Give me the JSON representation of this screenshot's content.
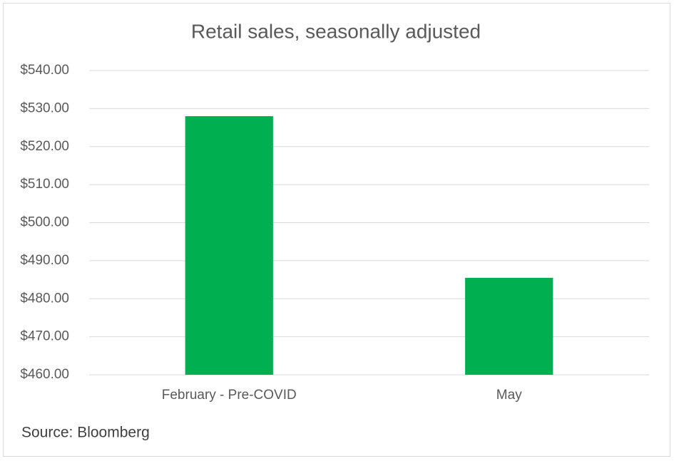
{
  "chart_data": {
    "type": "bar",
    "title": "Retail sales, seasonally adjusted",
    "categories": [
      "February - Pre-COVID",
      "May"
    ],
    "values": [
      528.0,
      485.5
    ],
    "color": "#00b050",
    "ylim": [
      460,
      540
    ],
    "yticks": [
      {
        "value": 460,
        "label": "$460.00"
      },
      {
        "value": 470,
        "label": "$470.00"
      },
      {
        "value": 480,
        "label": "$480.00"
      },
      {
        "value": 490,
        "label": "$490.00"
      },
      {
        "value": 500,
        "label": "$500.00"
      },
      {
        "value": 510,
        "label": "$510.00"
      },
      {
        "value": 520,
        "label": "$520.00"
      },
      {
        "value": 530,
        "label": "$530.00"
      },
      {
        "value": 540,
        "label": "$540.00"
      }
    ],
    "grid": true,
    "source": "Source: Bloomberg"
  }
}
